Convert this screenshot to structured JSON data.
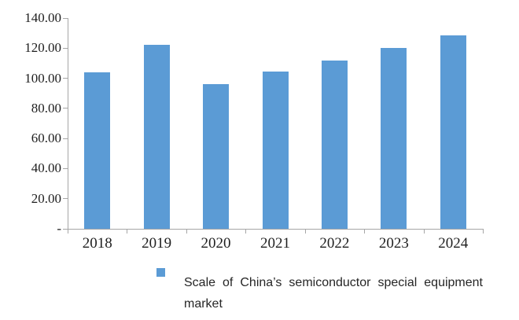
{
  "chart_data": {
    "type": "bar",
    "title": "",
    "xlabel": "",
    "ylabel": "",
    "categories": [
      "2018",
      "2019",
      "2020",
      "2021",
      "2022",
      "2023",
      "2024"
    ],
    "series": [
      {
        "name": "Scale of China’s semiconductor special equipment market",
        "values": [
          104,
          122,
          96,
          104.5,
          112,
          120,
          128.5
        ]
      }
    ],
    "ylim": [
      0,
      140
    ],
    "y_ticks": [
      {
        "label": "140.00",
        "value": 140
      },
      {
        "label": "120.00",
        "value": 120
      },
      {
        "label": "100.00",
        "value": 100
      },
      {
        "label": "80.00",
        "value": 80
      },
      {
        "label": "60.00",
        "value": 60
      },
      {
        "label": "40.00",
        "value": 40
      },
      {
        "label": "20.00",
        "value": 20
      },
      {
        "label": "-",
        "value": 0
      }
    ],
    "grid": false,
    "legend": {
      "position": "bottom",
      "label": "Scale of China’s semiconductor special equipment market"
    },
    "colors": {
      "bar": "#5B9BD5",
      "axis_line": "#A6A6A6",
      "text": "#1F1F1F"
    }
  }
}
